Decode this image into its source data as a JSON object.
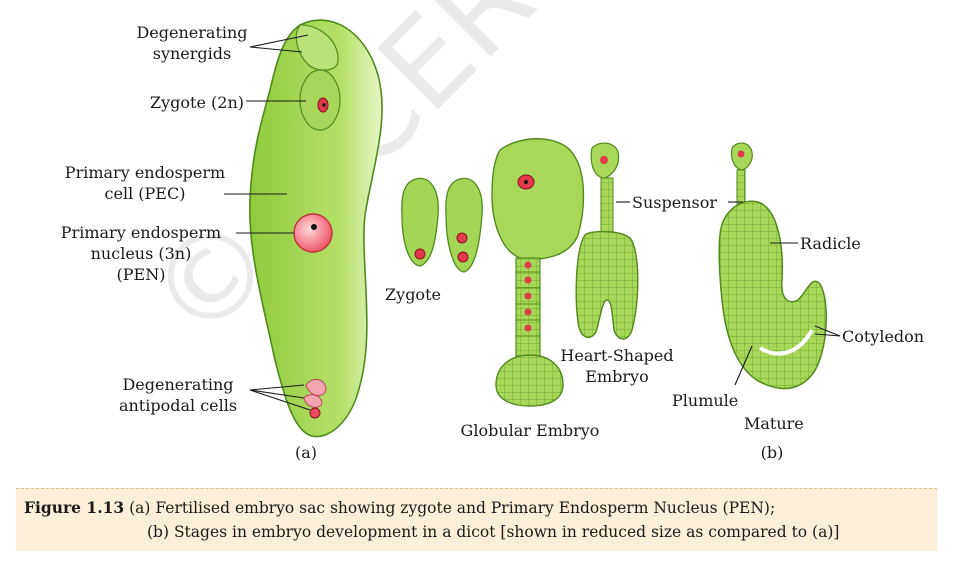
{
  "watermark": "© NCERT not to be republished",
  "labels": {
    "degenerating_synergids": [
      "Degenerating",
      "synergids"
    ],
    "zygote_2n": "Zygote (2n)",
    "primary_endosperm_cell": [
      "Primary endosperm",
      "cell (PEC)"
    ],
    "primary_endosperm_nucleus": [
      "Primary endosperm",
      "nucleus (3n)",
      "(PEN)"
    ],
    "degenerating_antipodal": [
      "Degenerating",
      "antipodal cells"
    ],
    "panel_a": "(a)",
    "zygote": "Zygote",
    "globular_embryo": "Globular Embryo",
    "heart_shaped_embryo": [
      "Heart-Shaped",
      "Embryo"
    ],
    "suspensor": "Suspensor",
    "radicle": "Radicle",
    "cotyledon": "Cotyledon",
    "plumule": "Plumule",
    "mature": "Mature",
    "panel_b": "(b)"
  },
  "caption": {
    "figure_label": "Figure 1.13",
    "line1": "(a) Fertilised embryo sac showing zygote and Primary Endosperm Nucleus (PEN);",
    "line2": "(b) Stages in embryo development in a dicot [shown in reduced size as compared to (a)]"
  },
  "colors": {
    "tissue_green": "#9fd449",
    "tissue_dark": "#4f8a1c",
    "nucleus_red": "#e23a4a",
    "pen_pink": "#f6a0a8",
    "caption_bg": "#fbefd8"
  }
}
